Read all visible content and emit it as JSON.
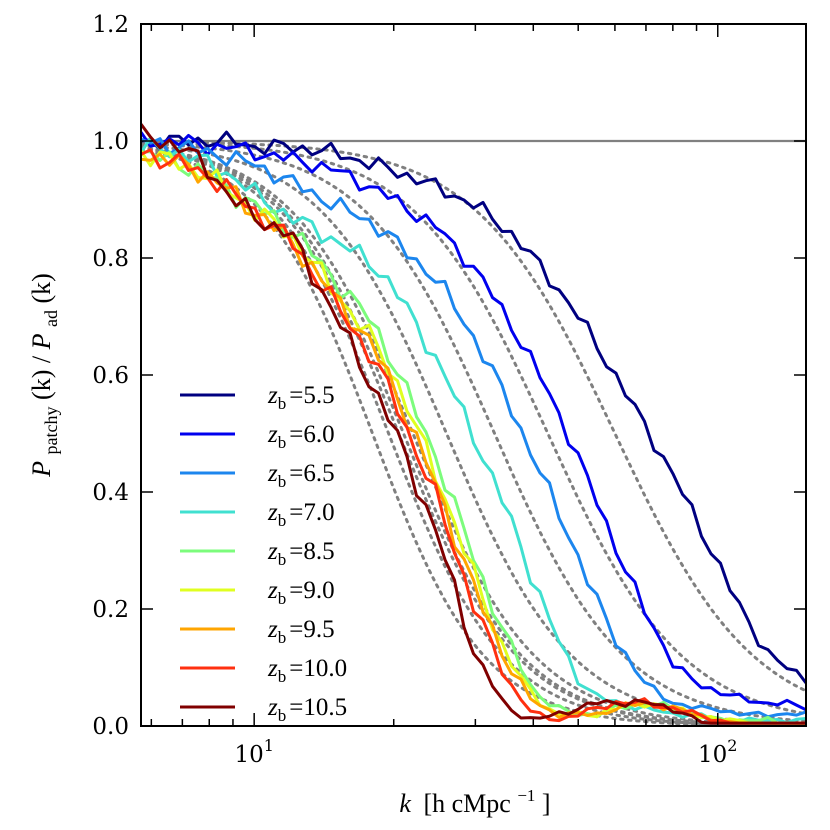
{
  "chart_data": {
    "type": "line",
    "xscale": "log",
    "xlim": [
      5.7,
      155
    ],
    "ylim": [
      0.0,
      1.2
    ],
    "xlabel_var": "k",
    "xlabel_units": "[h cMpc",
    "xlabel_exp": "−1",
    "xlabel_close": "]",
    "ylabel_num_var": "P",
    "ylabel_num_sub": "patchy",
    "ylabel_den_var": "P",
    "ylabel_den_sub": "ad",
    "ylabel_arg": "(k)",
    "x_major_ticks": [
      {
        "value": 10,
        "base": "10",
        "exp": "1"
      },
      {
        "value": 100,
        "base": "10",
        "exp": "2"
      }
    ],
    "x_minor_ticks": [
      6,
      7,
      8,
      9,
      20,
      30,
      40,
      50,
      60,
      70,
      80,
      90
    ],
    "y_ticks": [
      {
        "value": 0.0,
        "label": "0.0"
      },
      {
        "value": 0.2,
        "label": "0.2"
      },
      {
        "value": 0.4,
        "label": "0.4"
      },
      {
        "value": 0.6,
        "label": "0.6"
      },
      {
        "value": 0.8,
        "label": "0.8"
      },
      {
        "value": 1.0,
        "label": "1.0"
      },
      {
        "value": 1.2,
        "label": "1.2"
      }
    ],
    "reference_line": {
      "y": 1.0,
      "color": "#808080"
    },
    "legend_position": "center-left",
    "legend_var": "z",
    "legend_sub": "b",
    "series": [
      {
        "name": "5.5",
        "color": "#000080",
        "k_half": 60,
        "sharp": 2.9,
        "wiggle": 0.01,
        "x": [
          5.7,
          7,
          8,
          9,
          10,
          12,
          15,
          18,
          20,
          25,
          30,
          35,
          40,
          45,
          50,
          55,
          60,
          70,
          80,
          90,
          100,
          110,
          120,
          130,
          140,
          155
        ],
        "y": [
          1.0,
          1.0,
          1.0,
          1.0,
          0.99,
          0.99,
          0.98,
          0.96,
          0.95,
          0.92,
          0.89,
          0.85,
          0.8,
          0.75,
          0.7,
          0.65,
          0.6,
          0.51,
          0.43,
          0.35,
          0.28,
          0.21,
          0.16,
          0.12,
          0.1,
          0.08
        ]
      },
      {
        "name": "6.0",
        "color": "#0000ee",
        "k_half": 43,
        "sharp": 3.0,
        "wiggle": 0.01,
        "x": [
          5.7,
          7,
          8,
          9,
          10,
          12,
          15,
          18,
          20,
          25,
          30,
          35,
          40,
          45,
          50,
          55,
          60,
          70,
          80,
          90,
          100,
          110,
          120,
          130,
          140,
          155
        ],
        "y": [
          1.0,
          1.0,
          0.99,
          0.99,
          0.98,
          0.97,
          0.95,
          0.92,
          0.9,
          0.85,
          0.78,
          0.7,
          0.62,
          0.54,
          0.46,
          0.38,
          0.31,
          0.19,
          0.11,
          0.07,
          0.06,
          0.05,
          0.04,
          0.04,
          0.04,
          0.03
        ]
      },
      {
        "name": "6.5",
        "color": "#1c86ee",
        "k_half": 33,
        "sharp": 3.1,
        "wiggle": 0.011,
        "x": [
          5.7,
          7,
          8,
          9,
          10,
          12,
          15,
          18,
          20,
          25,
          30,
          35,
          40,
          45,
          50,
          55,
          60,
          70,
          80,
          90,
          100,
          110,
          120,
          130,
          140,
          155
        ],
        "y": [
          1.0,
          0.99,
          0.98,
          0.97,
          0.96,
          0.93,
          0.89,
          0.86,
          0.83,
          0.76,
          0.66,
          0.56,
          0.46,
          0.37,
          0.29,
          0.21,
          0.15,
          0.07,
          0.04,
          0.03,
          0.03,
          0.02,
          0.02,
          0.02,
          0.02,
          0.02
        ]
      },
      {
        "name": "7.0",
        "color": "#40e0d0",
        "k_half": 26,
        "sharp": 3.2,
        "wiggle": 0.012,
        "x": [
          5.7,
          7,
          8,
          9,
          10,
          12,
          15,
          18,
          20,
          25,
          30,
          35,
          40,
          45,
          50,
          55,
          60,
          70,
          80,
          90,
          100,
          110,
          120,
          130,
          140,
          155
        ],
        "y": [
          0.99,
          0.98,
          0.96,
          0.94,
          0.91,
          0.87,
          0.83,
          0.79,
          0.75,
          0.62,
          0.49,
          0.37,
          0.25,
          0.15,
          0.08,
          0.05,
          0.04,
          0.03,
          0.02,
          0.02,
          0.01,
          0.01,
          0.01,
          0.01,
          0.01,
          0.01
        ]
      },
      {
        "name": "8.5",
        "color": "#7cfc7c",
        "k_half": 22,
        "sharp": 3.3,
        "wiggle": 0.013,
        "x": [
          5.7,
          7,
          8,
          9,
          10,
          12,
          15,
          18,
          20,
          25,
          30,
          35,
          40,
          45,
          50,
          55,
          60,
          70,
          80,
          90,
          100,
          110,
          120,
          130,
          140,
          155
        ],
        "y": [
          0.98,
          0.96,
          0.94,
          0.91,
          0.89,
          0.85,
          0.76,
          0.69,
          0.62,
          0.45,
          0.28,
          0.15,
          0.06,
          0.03,
          0.02,
          0.02,
          0.03,
          0.04,
          0.03,
          0.02,
          0.01,
          0.01,
          0.01,
          0.01,
          0.0,
          0.0
        ]
      },
      {
        "name": "9.0",
        "color": "#e0ff20",
        "k_half": 21,
        "sharp": 3.4,
        "wiggle": 0.013,
        "x": [
          5.7,
          7,
          8,
          9,
          10,
          12,
          15,
          18,
          20,
          25,
          30,
          35,
          40,
          45,
          50,
          55,
          60,
          70,
          80,
          90,
          100,
          110,
          120,
          130,
          140,
          155
        ],
        "y": [
          0.98,
          0.96,
          0.94,
          0.91,
          0.88,
          0.84,
          0.74,
          0.66,
          0.6,
          0.42,
          0.25,
          0.12,
          0.05,
          0.02,
          0.02,
          0.02,
          0.03,
          0.04,
          0.03,
          0.02,
          0.01,
          0.01,
          0.0,
          0.0,
          0.0,
          0.0
        ]
      },
      {
        "name": "9.5",
        "color": "#ffa500",
        "k_half": 20.5,
        "sharp": 3.4,
        "wiggle": 0.013,
        "x": [
          5.7,
          7,
          8,
          9,
          10,
          12,
          15,
          18,
          20,
          25,
          30,
          35,
          40,
          45,
          50,
          55,
          60,
          70,
          80,
          90,
          100,
          110,
          120,
          130,
          140,
          155
        ],
        "y": [
          0.98,
          0.96,
          0.94,
          0.91,
          0.88,
          0.83,
          0.73,
          0.65,
          0.58,
          0.4,
          0.23,
          0.11,
          0.04,
          0.02,
          0.02,
          0.02,
          0.03,
          0.04,
          0.03,
          0.02,
          0.01,
          0.0,
          0.0,
          0.0,
          0.0,
          0.0
        ]
      },
      {
        "name": "10.0",
        "color": "#ff3010",
        "k_half": 19.5,
        "sharp": 3.5,
        "wiggle": 0.013,
        "x": [
          5.7,
          7,
          8,
          9,
          10,
          12,
          15,
          18,
          20,
          25,
          30,
          35,
          40,
          45,
          50,
          55,
          60,
          70,
          80,
          90,
          100,
          110,
          120,
          130,
          140,
          155
        ],
        "y": [
          0.98,
          0.96,
          0.94,
          0.91,
          0.88,
          0.83,
          0.72,
          0.63,
          0.56,
          0.38,
          0.2,
          0.08,
          0.02,
          0.01,
          0.02,
          0.03,
          0.04,
          0.04,
          0.03,
          0.02,
          0.01,
          0.0,
          0.0,
          0.0,
          0.0,
          0.0
        ]
      },
      {
        "name": "10.5",
        "color": "#800000",
        "k_half": 18,
        "sharp": 3.6,
        "wiggle": 0.013,
        "x": [
          5.7,
          7,
          8,
          9,
          10,
          12,
          15,
          18,
          20,
          25,
          30,
          35,
          40,
          45,
          50,
          55,
          60,
          70,
          80,
          90,
          100,
          110,
          120,
          130,
          140,
          155
        ],
        "y": [
          1.01,
          0.99,
          0.95,
          0.9,
          0.87,
          0.84,
          0.7,
          0.58,
          0.51,
          0.32,
          0.12,
          0.03,
          0.01,
          0.02,
          0.03,
          0.04,
          0.04,
          0.04,
          0.03,
          0.01,
          0.0,
          0.0,
          0.0,
          0.0,
          0.0,
          0.0
        ]
      }
    ],
    "fit_curves": {
      "color": "#808080",
      "style": "dotted",
      "count": 9
    }
  }
}
